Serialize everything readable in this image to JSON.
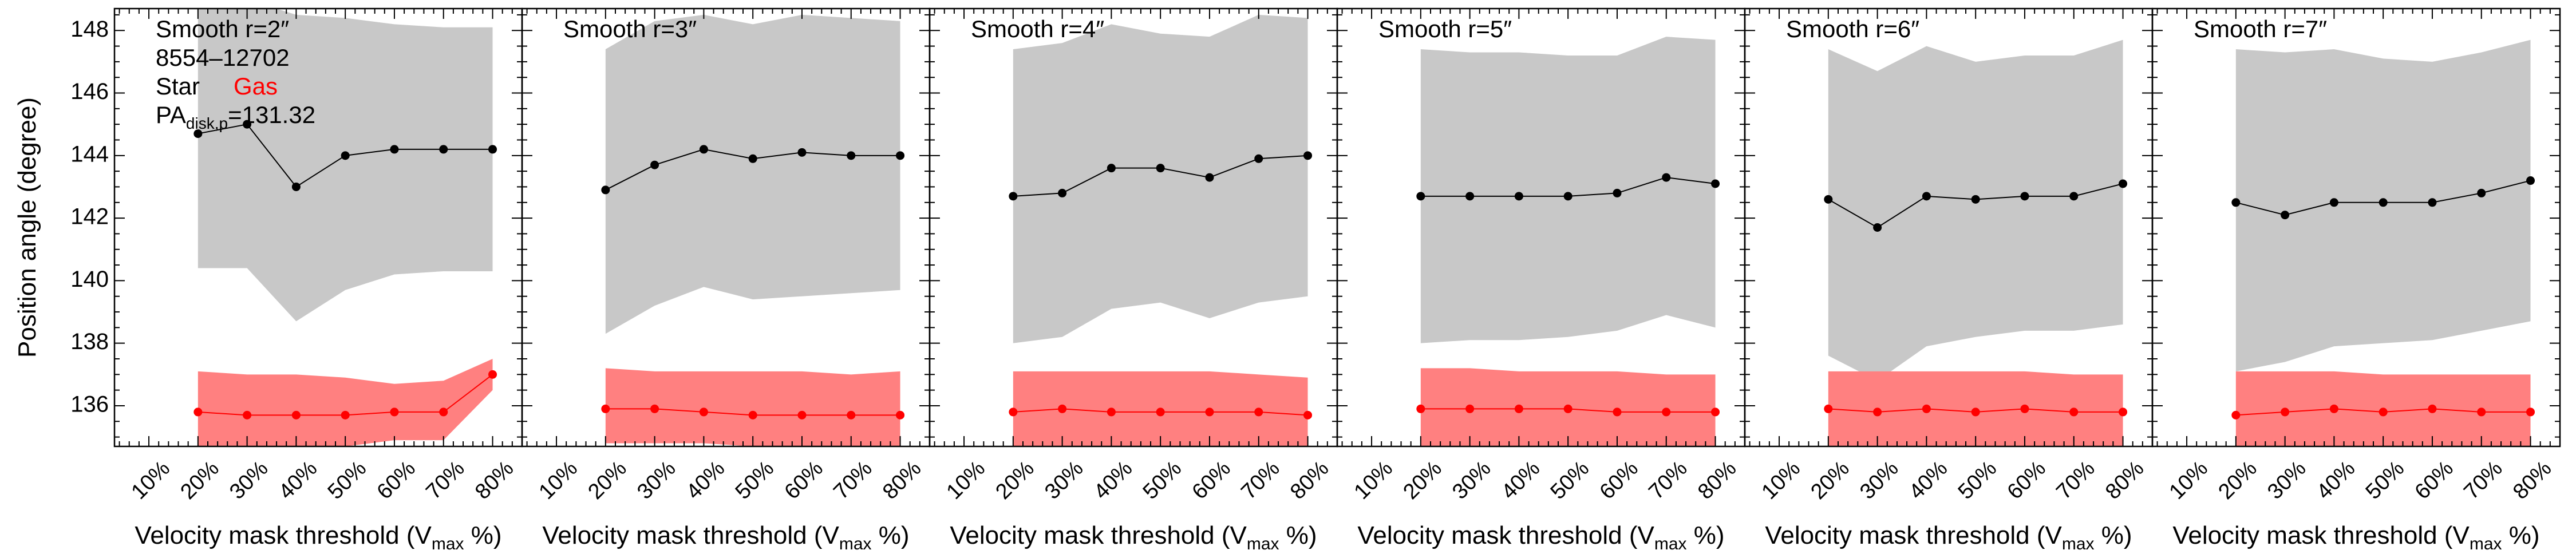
{
  "chart_data": [
    {
      "type": "line",
      "panel_label": "Smooth r=2″",
      "galaxy_id": "8554–12702",
      "legend": {
        "star_label": "Star",
        "gas_label": "Gas",
        "pa_prefix": "PA",
        "pa_subscript": "disk,p",
        "pa_value": "=131.32"
      },
      "x": [
        20,
        30,
        40,
        50,
        60,
        70,
        80
      ],
      "xticks": [
        "10%",
        "20%",
        "30%",
        "40%",
        "50%",
        "60%",
        "70%",
        "80%"
      ],
      "xlabel": "Velocity mask threshold (V",
      "xlabel_sub": "max",
      "xlabel_end": " %)",
      "ylabel": "Position angle (degree)",
      "yticks": [
        136,
        138,
        140,
        142,
        144,
        146,
        148
      ],
      "ylim": [
        134.7,
        148.7
      ],
      "xlim": [
        3,
        86
      ],
      "series": [
        {
          "name": "Star",
          "color": "#000000",
          "values": [
            144.7,
            145.0,
            143.0,
            144.0,
            144.2,
            144.2,
            144.2
          ],
          "band_upper": [
            149.3,
            149.0,
            148.5,
            148.4,
            148.2,
            148.1,
            148.1
          ],
          "band_lower": [
            140.4,
            140.4,
            138.7,
            139.7,
            140.2,
            140.3,
            140.3
          ]
        },
        {
          "name": "Gas",
          "color": "#ff0000",
          "values": [
            135.8,
            135.7,
            135.7,
            135.7,
            135.8,
            135.8,
            137.0
          ],
          "band_upper": [
            137.1,
            137.0,
            137.0,
            136.9,
            136.7,
            136.8,
            137.5
          ],
          "band_lower": [
            134.7,
            134.7,
            134.7,
            134.7,
            134.9,
            134.9,
            136.5
          ]
        }
      ]
    },
    {
      "type": "line",
      "panel_label": "Smooth r=3″",
      "x": [
        20,
        30,
        40,
        50,
        60,
        70,
        80
      ],
      "xticks": [
        "10%",
        "20%",
        "30%",
        "40%",
        "50%",
        "60%",
        "70%",
        "80%"
      ],
      "xlabel": "Velocity mask threshold (V",
      "xlabel_sub": "max",
      "xlabel_end": " %)",
      "ylim": [
        134.7,
        148.7
      ],
      "xlim": [
        3,
        86
      ],
      "series": [
        {
          "name": "Star",
          "color": "#000000",
          "values": [
            142.9,
            143.7,
            144.2,
            143.9,
            144.1,
            144.0,
            144.0
          ],
          "band_upper": [
            147.4,
            148.3,
            148.5,
            148.2,
            148.5,
            148.4,
            148.3
          ],
          "band_lower": [
            138.3,
            139.2,
            139.8,
            139.4,
            139.5,
            139.6,
            139.7
          ]
        },
        {
          "name": "Gas",
          "color": "#ff0000",
          "values": [
            135.9,
            135.9,
            135.8,
            135.7,
            135.7,
            135.7,
            135.7
          ],
          "band_upper": [
            137.2,
            137.1,
            137.1,
            137.1,
            137.1,
            137.0,
            137.1
          ],
          "band_lower": [
            134.8,
            134.8,
            134.8,
            134.7,
            134.7,
            134.7,
            134.7
          ]
        }
      ]
    },
    {
      "type": "line",
      "panel_label": "Smooth r=4″",
      "x": [
        20,
        30,
        40,
        50,
        60,
        70,
        80
      ],
      "xticks": [
        "10%",
        "20%",
        "30%",
        "40%",
        "50%",
        "60%",
        "70%",
        "80%"
      ],
      "xlabel": "Velocity mask threshold (V",
      "xlabel_sub": "max",
      "xlabel_end": " %)",
      "ylim": [
        134.7,
        148.7
      ],
      "xlim": [
        3,
        86
      ],
      "series": [
        {
          "name": "Star",
          "color": "#000000",
          "values": [
            142.7,
            142.8,
            143.6,
            143.6,
            143.3,
            143.9,
            144.0
          ],
          "band_upper": [
            147.4,
            147.6,
            148.2,
            147.9,
            147.8,
            148.5,
            148.4
          ],
          "band_lower": [
            138.0,
            138.2,
            139.1,
            139.3,
            138.8,
            139.3,
            139.5
          ]
        },
        {
          "name": "Gas",
          "color": "#ff0000",
          "values": [
            135.8,
            135.9,
            135.8,
            135.8,
            135.8,
            135.8,
            135.7
          ],
          "band_upper": [
            137.1,
            137.1,
            137.1,
            137.1,
            137.1,
            137.0,
            136.9
          ],
          "band_lower": [
            134.7,
            134.7,
            134.7,
            134.7,
            134.7,
            134.7,
            134.7
          ]
        }
      ]
    },
    {
      "type": "line",
      "panel_label": "Smooth r=5″",
      "x": [
        20,
        30,
        40,
        50,
        60,
        70,
        80
      ],
      "xticks": [
        "10%",
        "20%",
        "30%",
        "40%",
        "50%",
        "60%",
        "70%",
        "80%"
      ],
      "xlabel": "Velocity mask threshold (V",
      "xlabel_sub": "max",
      "xlabel_end": " %)",
      "ylim": [
        134.7,
        148.7
      ],
      "xlim": [
        3,
        86
      ],
      "series": [
        {
          "name": "Star",
          "color": "#000000",
          "values": [
            142.7,
            142.7,
            142.7,
            142.7,
            142.8,
            143.3,
            143.1
          ],
          "band_upper": [
            147.4,
            147.3,
            147.3,
            147.2,
            147.2,
            147.8,
            147.7
          ],
          "band_lower": [
            138.0,
            138.1,
            138.1,
            138.2,
            138.4,
            138.9,
            138.5
          ]
        },
        {
          "name": "Gas",
          "color": "#ff0000",
          "values": [
            135.9,
            135.9,
            135.9,
            135.9,
            135.8,
            135.8,
            135.8
          ],
          "band_upper": [
            137.2,
            137.2,
            137.1,
            137.1,
            137.1,
            137.0,
            137.0
          ],
          "band_lower": [
            134.7,
            134.7,
            134.7,
            134.7,
            134.7,
            134.7,
            134.7
          ]
        }
      ]
    },
    {
      "type": "line",
      "panel_label": "Smooth r=6″",
      "x": [
        20,
        30,
        40,
        50,
        60,
        70,
        80
      ],
      "xticks": [
        "10%",
        "20%",
        "30%",
        "40%",
        "50%",
        "60%",
        "70%",
        "80%"
      ],
      "xlabel": "Velocity mask threshold (V",
      "xlabel_sub": "max",
      "xlabel_end": " %)",
      "ylim": [
        134.7,
        148.7
      ],
      "xlim": [
        3,
        86
      ],
      "series": [
        {
          "name": "Star",
          "color": "#000000",
          "values": [
            142.6,
            141.7,
            142.7,
            142.6,
            142.7,
            142.7,
            143.1
          ],
          "band_upper": [
            147.4,
            146.7,
            147.5,
            147.0,
            147.2,
            147.2,
            147.7
          ],
          "band_lower": [
            137.6,
            136.8,
            137.9,
            138.2,
            138.4,
            138.4,
            138.6
          ]
        },
        {
          "name": "Gas",
          "color": "#ff0000",
          "values": [
            135.9,
            135.8,
            135.9,
            135.8,
            135.9,
            135.8,
            135.8
          ],
          "band_upper": [
            137.1,
            137.1,
            137.1,
            137.1,
            137.1,
            137.0,
            137.0
          ],
          "band_lower": [
            134.7,
            134.7,
            134.7,
            134.7,
            134.7,
            134.7,
            134.7
          ]
        }
      ]
    },
    {
      "type": "line",
      "panel_label": "Smooth r=7″",
      "x": [
        20,
        30,
        40,
        50,
        60,
        70,
        80
      ],
      "xticks": [
        "10%",
        "20%",
        "30%",
        "40%",
        "50%",
        "60%",
        "70%",
        "80%"
      ],
      "xlabel": "Velocity mask threshold (V",
      "xlabel_sub": "max",
      "xlabel_end": " %)",
      "ylim": [
        134.7,
        148.7
      ],
      "xlim": [
        3,
        86
      ],
      "series": [
        {
          "name": "Star",
          "color": "#000000",
          "values": [
            142.5,
            142.1,
            142.5,
            142.5,
            142.5,
            142.8,
            143.2
          ],
          "band_upper": [
            147.4,
            147.3,
            147.4,
            147.1,
            147.0,
            147.3,
            147.7
          ],
          "band_lower": [
            137.1,
            137.4,
            137.9,
            138.0,
            138.1,
            138.4,
            138.7
          ]
        },
        {
          "name": "Gas",
          "color": "#ff0000",
          "values": [
            135.7,
            135.8,
            135.9,
            135.8,
            135.9,
            135.8,
            135.8
          ],
          "band_upper": [
            137.1,
            137.1,
            137.1,
            137.0,
            137.0,
            137.0,
            137.0
          ],
          "band_lower": [
            134.7,
            134.7,
            134.7,
            134.7,
            134.7,
            134.7,
            134.7
          ]
        }
      ]
    }
  ],
  "style": {
    "star_band_color": "#c8c8c8",
    "gas_band_color": "#ff8080",
    "star_color": "#000000",
    "gas_color": "#ff0000"
  }
}
